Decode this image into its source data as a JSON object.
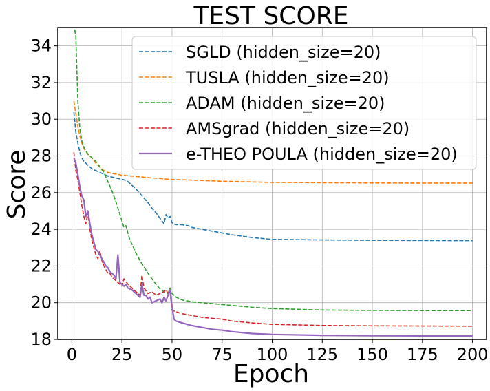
{
  "chart_data": {
    "type": "line",
    "title": "TEST SCORE",
    "xlabel": "Epoch",
    "ylabel": "Score",
    "xlim": [
      -7,
      207
    ],
    "ylim": [
      18,
      35
    ],
    "xticks": [
      0,
      25,
      50,
      75,
      100,
      125,
      150,
      175,
      200
    ],
    "yticks": [
      18,
      20,
      22,
      24,
      26,
      28,
      30,
      32,
      34
    ],
    "grid": true,
    "legend_position": "top-right",
    "series": [
      {
        "name": "SGLD (hidden_size=20)",
        "color": "#1f77b4",
        "style": "dashed",
        "x": [
          1,
          2,
          3,
          4,
          5,
          6,
          8,
          10,
          12,
          14,
          16,
          18,
          20,
          22,
          24,
          26,
          28,
          30,
          32,
          34,
          36,
          38,
          40,
          42,
          44,
          46,
          47,
          48,
          49,
          50,
          52,
          55,
          58,
          60,
          65,
          70,
          75,
          80,
          90,
          100,
          125,
          150,
          175,
          200
        ],
        "y": [
          30.4,
          29.3,
          28.7,
          28.2,
          27.9,
          27.7,
          27.5,
          27.3,
          27.2,
          27.1,
          27.0,
          26.9,
          26.85,
          26.8,
          26.75,
          26.7,
          26.6,
          26.4,
          26.2,
          25.95,
          25.7,
          25.45,
          25.15,
          24.9,
          24.6,
          24.3,
          24.8,
          24.6,
          24.7,
          24.35,
          24.25,
          24.25,
          24.2,
          24.1,
          24.0,
          23.9,
          23.8,
          23.7,
          23.55,
          23.45,
          23.42,
          23.4,
          23.39,
          23.38
        ]
      },
      {
        "name": "TUSLA (hidden_size=20)",
        "color": "#ff7f0e",
        "style": "dashed",
        "x": [
          1,
          2,
          3,
          4,
          5,
          6,
          8,
          10,
          12,
          14,
          16,
          18,
          20,
          25,
          30,
          40,
          50,
          60,
          75,
          100,
          125,
          150,
          175,
          200
        ],
        "y": [
          31.0,
          30.3,
          29.6,
          29.1,
          28.7,
          28.4,
          28.1,
          27.9,
          27.6,
          27.4,
          27.2,
          27.1,
          27.05,
          26.95,
          26.9,
          26.8,
          26.72,
          26.68,
          26.62,
          26.56,
          26.54,
          26.53,
          26.52,
          26.52
        ]
      },
      {
        "name": "ADAM (hidden_size=20)",
        "color": "#2ca02c",
        "style": "dashed",
        "x": [
          1,
          2,
          3,
          4,
          5,
          6,
          8,
          10,
          12,
          14,
          16,
          18,
          20,
          22,
          24,
          26,
          27,
          28,
          29,
          30,
          32,
          34,
          36,
          38,
          40,
          42,
          44,
          46,
          48,
          49,
          50,
          52,
          55,
          60,
          65,
          70,
          75,
          80,
          90,
          100,
          125,
          150,
          175,
          200
        ],
        "y": [
          35.2,
          34.5,
          31.0,
          29.5,
          28.8,
          28.5,
          28.1,
          27.9,
          27.7,
          27.4,
          27.1,
          26.6,
          26.1,
          25.5,
          24.8,
          24.1,
          24.2,
          23.8,
          23.4,
          23.2,
          22.7,
          22.3,
          21.95,
          21.6,
          21.3,
          21.0,
          20.75,
          20.6,
          20.5,
          20.8,
          20.5,
          20.3,
          20.15,
          20.05,
          20.0,
          19.95,
          19.9,
          19.85,
          19.75,
          19.68,
          19.6,
          19.58,
          19.57,
          19.57
        ]
      },
      {
        "name": "AMSgrad (hidden_size=20)",
        "color": "#d62728",
        "style": "dashed",
        "x": [
          1,
          2,
          3,
          4,
          5,
          6,
          7,
          8,
          9,
          10,
          11,
          12,
          13,
          14,
          15,
          16,
          17,
          18,
          19,
          20,
          22,
          24,
          25,
          26,
          28,
          30,
          32,
          34,
          35,
          36,
          38,
          40,
          42,
          44,
          46,
          47,
          48,
          49,
          50,
          52,
          55,
          60,
          65,
          70,
          75,
          80,
          90,
          100,
          125,
          150,
          175,
          200
        ],
        "y": [
          28.2,
          27.2,
          26.7,
          26.0,
          25.3,
          24.7,
          24.3,
          24.9,
          24.0,
          23.4,
          23.0,
          22.6,
          22.4,
          22.8,
          22.3,
          22.0,
          21.8,
          21.6,
          21.6,
          21.4,
          21.2,
          21.0,
          20.9,
          21.3,
          21.0,
          20.8,
          20.6,
          20.4,
          21.5,
          20.8,
          20.5,
          20.6,
          20.4,
          20.5,
          20.6,
          20.7,
          20.5,
          20.6,
          19.6,
          19.5,
          19.4,
          19.3,
          19.2,
          19.15,
          19.1,
          19.0,
          18.9,
          18.82,
          18.76,
          18.74,
          18.73,
          18.72
        ]
      },
      {
        "name": "e-THEO POULA (hidden_size=20)",
        "color": "#9467bd",
        "style": "solid",
        "x": [
          1,
          2,
          3,
          4,
          5,
          6,
          7,
          8,
          9,
          10,
          11,
          12,
          13,
          14,
          15,
          16,
          17,
          18,
          19,
          20,
          21,
          22,
          23,
          24,
          25,
          26,
          27,
          28,
          30,
          32,
          33,
          34,
          35,
          36,
          37,
          38,
          39,
          40,
          42,
          44,
          45,
          46,
          47,
          48,
          49,
          50,
          51,
          52,
          55,
          60,
          65,
          70,
          75,
          80,
          90,
          100,
          125,
          150,
          175,
          200
        ],
        "y": [
          27.9,
          27.6,
          27.0,
          26.3,
          25.8,
          25.6,
          24.7,
          25.0,
          24.3,
          23.7,
          23.3,
          22.9,
          22.8,
          22.6,
          22.4,
          22.2,
          22.0,
          21.9,
          21.7,
          21.6,
          21.5,
          21.3,
          22.6,
          21.1,
          21.0,
          20.9,
          21.0,
          20.8,
          20.7,
          20.5,
          20.4,
          20.3,
          21.0,
          20.4,
          20.4,
          20.2,
          20.3,
          20.0,
          20.1,
          20.2,
          20.0,
          20.3,
          20.1,
          20.4,
          20.7,
          19.8,
          19.1,
          19.0,
          18.9,
          18.75,
          18.65,
          18.55,
          18.5,
          18.42,
          18.32,
          18.27,
          18.22,
          18.2,
          18.19,
          18.19
        ]
      }
    ]
  }
}
